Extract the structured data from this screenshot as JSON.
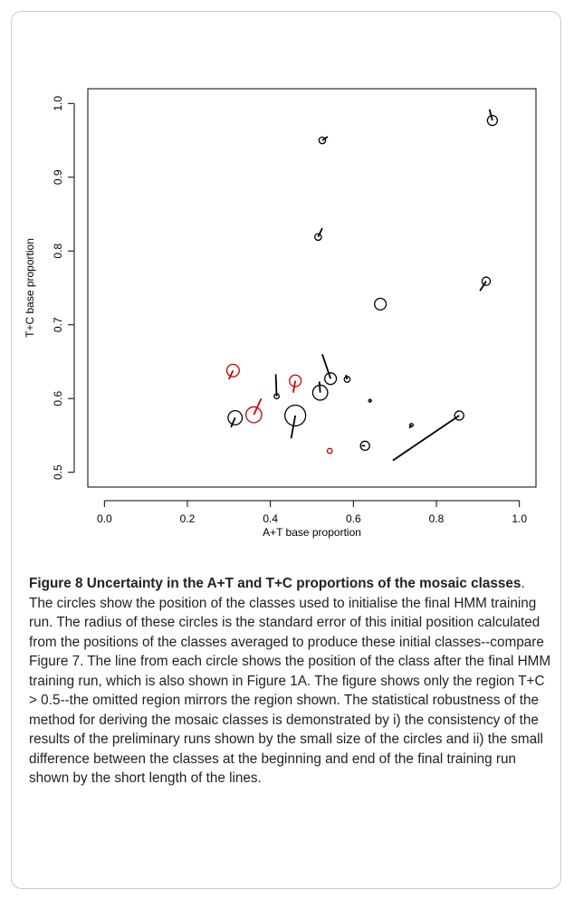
{
  "chart_data": {
    "type": "scatter",
    "xlabel": "A+T base proportion",
    "ylabel": "T+C base proportion",
    "xlim": [
      -0.04,
      1.04
    ],
    "ylim": [
      0.48,
      1.02
    ],
    "xticks": [
      "0.0",
      "0.2",
      "0.4",
      "0.6",
      "0.8",
      "1.0"
    ],
    "yticks": [
      "0.5",
      "0.6",
      "0.7",
      "0.8",
      "0.9",
      "1.0"
    ],
    "xtick_values": [
      0.0,
      0.2,
      0.4,
      0.6,
      0.8,
      1.0
    ],
    "ytick_values": [
      0.5,
      0.6,
      0.7,
      0.8,
      0.9,
      1.0
    ],
    "grid": false,
    "colors": {
      "black": "#000000",
      "red": "#cc0000"
    },
    "points": [
      {
        "x": 0.935,
        "y": 0.977,
        "radius": 0.012,
        "x_end": 0.928,
        "y_end": 0.992,
        "color": "black"
      },
      {
        "x": 0.525,
        "y": 0.95,
        "radius": 0.008,
        "x_end": 0.538,
        "y_end": 0.955,
        "color": "black"
      },
      {
        "x": 0.515,
        "y": 0.819,
        "radius": 0.008,
        "x_end": 0.525,
        "y_end": 0.831,
        "color": "black"
      },
      {
        "x": 0.92,
        "y": 0.759,
        "radius": 0.01,
        "x_end": 0.905,
        "y_end": 0.746,
        "color": "black"
      },
      {
        "x": 0.665,
        "y": 0.728,
        "radius": 0.014,
        "x_end": 0.665,
        "y_end": 0.728,
        "color": "black"
      },
      {
        "x": 0.545,
        "y": 0.627,
        "radius": 0.014,
        "x_end": 0.525,
        "y_end": 0.66,
        "color": "black"
      },
      {
        "x": 0.585,
        "y": 0.626,
        "radius": 0.007,
        "x_end": 0.582,
        "y_end": 0.632,
        "color": "black"
      },
      {
        "x": 0.52,
        "y": 0.608,
        "radius": 0.018,
        "x_end": 0.518,
        "y_end": 0.623,
        "color": "black"
      },
      {
        "x": 0.415,
        "y": 0.603,
        "radius": 0.006,
        "x_end": 0.413,
        "y_end": 0.633,
        "color": "black"
      },
      {
        "x": 0.64,
        "y": 0.597,
        "radius": 0.003,
        "x_end": 0.643,
        "y_end": 0.597,
        "color": "black"
      },
      {
        "x": 0.315,
        "y": 0.574,
        "radius": 0.017,
        "x_end": 0.305,
        "y_end": 0.561,
        "color": "black"
      },
      {
        "x": 0.46,
        "y": 0.577,
        "radius": 0.025,
        "x_end": 0.45,
        "y_end": 0.546,
        "color": "black"
      },
      {
        "x": 0.855,
        "y": 0.577,
        "radius": 0.011,
        "x_end": 0.695,
        "y_end": 0.516,
        "color": "black"
      },
      {
        "x": 0.628,
        "y": 0.536,
        "radius": 0.011,
        "x_end": 0.62,
        "y_end": 0.536,
        "color": "black"
      },
      {
        "x": 0.74,
        "y": 0.564,
        "radius": 0.004,
        "x_end": 0.735,
        "y_end": 0.56,
        "color": "black"
      },
      {
        "x": 0.31,
        "y": 0.638,
        "radius": 0.015,
        "x_end": 0.3,
        "y_end": 0.626,
        "color": "red"
      },
      {
        "x": 0.36,
        "y": 0.578,
        "radius": 0.019,
        "x_end": 0.378,
        "y_end": 0.6,
        "color": "red"
      },
      {
        "x": 0.46,
        "y": 0.624,
        "radius": 0.014,
        "x_end": 0.455,
        "y_end": 0.608,
        "color": "red"
      },
      {
        "x": 0.543,
        "y": 0.529,
        "radius": 0.006,
        "x_end": 0.543,
        "y_end": 0.529,
        "color": "red"
      }
    ]
  },
  "caption": {
    "label": "Figure 8",
    "title": "Uncertainty in the A+T and T+C proportions of the mosaic classes",
    "body": ". The circles show the position of the classes used to initialise the final HMM training run. The radius of these circles is the standard error of this initial position calculated from the positions of the classes averaged to produce these initial classes--compare Figure 7. The line from each circle shows the position of the class after the final HMM training run, which is also shown in Figure 1A. The figure shows only the region T+C > 0.5--the omitted region mirrors the region shown. The statistical robustness of the method for deriving the mosaic classes is demonstrated by i) the consistency of the results of the preliminary runs shown by the small size of the circles and ii) the small difference between the classes at the beginning and end of the final training run shown by the short length of the lines."
  }
}
